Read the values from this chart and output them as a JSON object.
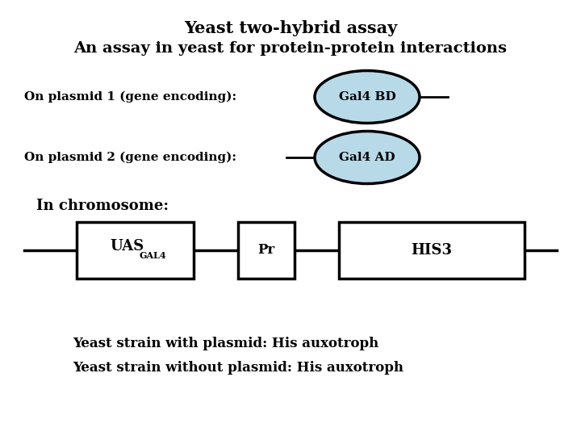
{
  "title_line1": "Yeast two-hybrid assay",
  "title_line2": "An assay in yeast for protein-protein interactions",
  "title_fontsize": 15,
  "label1": "On plasmid 1 (gene encoding):",
  "label2": "On plasmid 2 (gene encoding):",
  "label3": "In chromosome:",
  "ellipse1_label": "Gal4 BD",
  "ellipse2_label": "Gal4 AD",
  "ellipse_fill": "#b8d9e8",
  "ellipse_edge": "#000000",
  "box1_label_main": "UAS",
  "box1_label_sub": "GAL4",
  "box2_label": "Pr",
  "box3_label": "HIS3",
  "bottom_text1": "Yeast strain with plasmid: His auxotroph",
  "bottom_text2": "Yeast strain without plasmid: His auxotroph",
  "background_color": "#ffffff"
}
